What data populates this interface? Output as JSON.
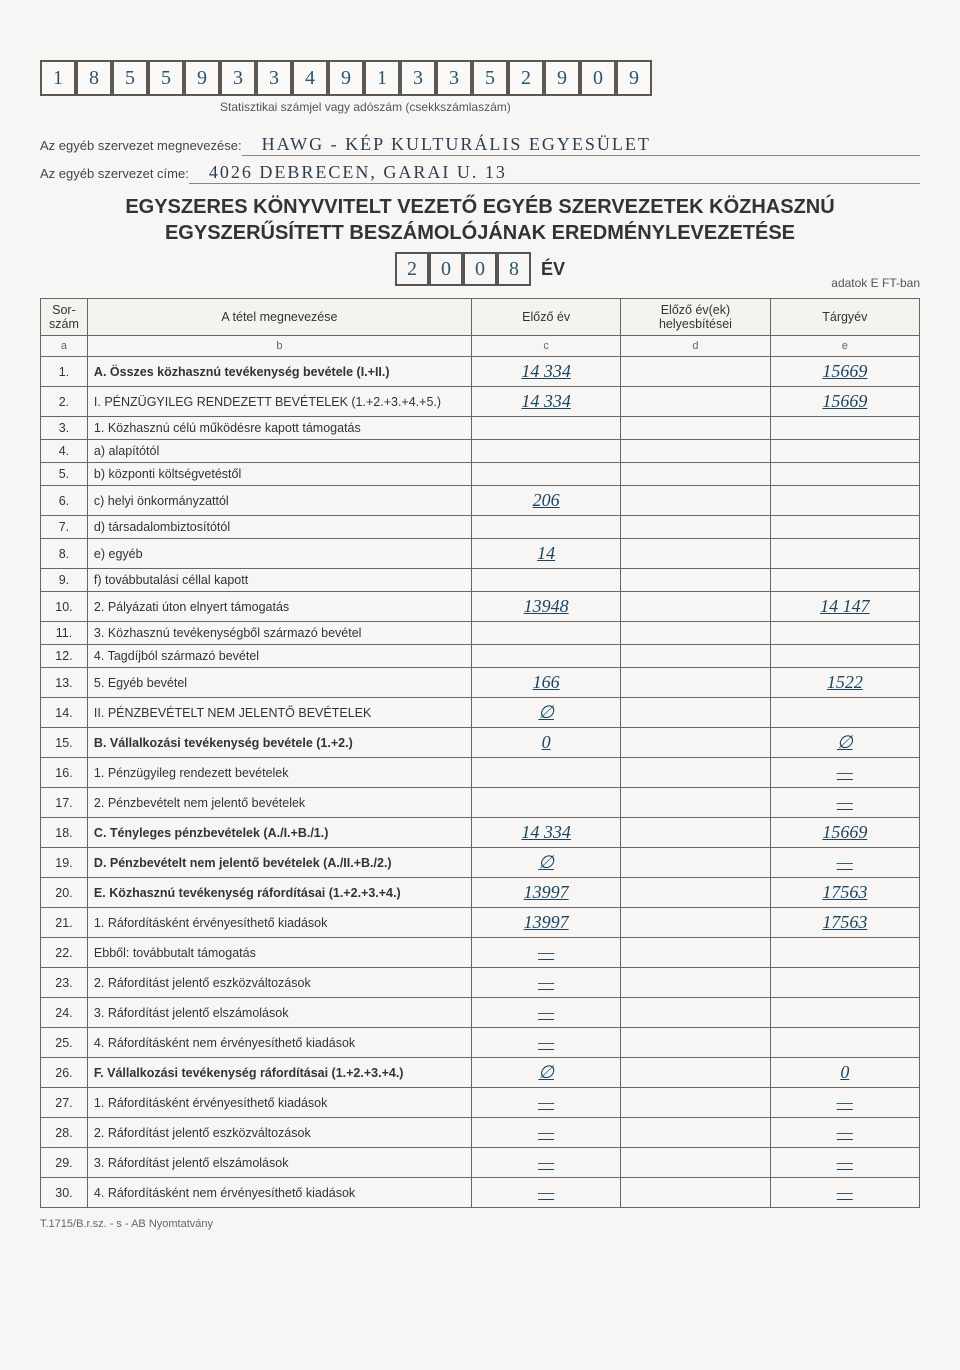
{
  "taxnum_cells": [
    "1",
    "8",
    "5",
    "5",
    "9",
    "3",
    "3",
    "4",
    "9",
    "1",
    "3",
    "3",
    "5",
    "2",
    "9",
    "0",
    "9"
  ],
  "taxnum_caption": "Statisztikai számjel vagy adószám (csekkszámlaszám)",
  "org_name_label": "Az egyéb szervezet megnevezése:",
  "org_name_value": "HAWG - KÉP   KULTURÁLIS  EGYESÜLET",
  "org_addr_label": "Az egyéb szervezet címe:",
  "org_addr_value": "4026  DEBRECEN,  GARAI  U. 13",
  "title_line1": "EGYSZERES KÖNYVVITELT VEZETŐ EGYÉB SZERVEZETEK KÖZHASZNÚ",
  "title_line2": "EGYSZERŰSÍTETT BESZÁMOLÓJÁNAK EREDMÉNYLEVEZETÉSE",
  "year_cells": [
    "2",
    "0",
    "0",
    "8"
  ],
  "year_label": "ÉV",
  "units_label": "adatok E FT-ban",
  "headers": {
    "sorszam": "Sor-szám",
    "megnevezes": "A tétel megnevezése",
    "elozo": "Előző év",
    "helyesbites": "Előző év(ek) helyesbítései",
    "targyev": "Tárgyév"
  },
  "subheads": [
    "a",
    "b",
    "c",
    "d",
    "e"
  ],
  "rows": [
    {
      "n": "1.",
      "name": "A. Összes közhasznú tevékenység bevétele (I.+II.)",
      "c": "14 334",
      "e": "15669",
      "bold": true
    },
    {
      "n": "2.",
      "name": "I.   PÉNZÜGYILEG RENDEZETT BEVÉTELEK (1.+2.+3.+4.+5.)",
      "c": "14 334",
      "e": "15669",
      "indent": 0
    },
    {
      "n": "3.",
      "name": "1. Közhasznú célú működésre kapott támogatás",
      "indent": 1
    },
    {
      "n": "4.",
      "name": "a) alapítótól",
      "indent": 2
    },
    {
      "n": "5.",
      "name": "b) központi költségvetéstől",
      "indent": 2
    },
    {
      "n": "6.",
      "name": "c) helyi önkormányzattól",
      "c": "206",
      "indent": 2
    },
    {
      "n": "7.",
      "name": "d) társadalombiztosítótól",
      "indent": 2
    },
    {
      "n": "8.",
      "name": "e) egyéb",
      "c": "14",
      "indent": 2
    },
    {
      "n": "9.",
      "name": "f) továbbutalási céllal kapott",
      "indent": 2
    },
    {
      "n": "10.",
      "name": "2. Pályázati úton elnyert támogatás",
      "c": "13948",
      "e": "14 147",
      "indent": 1
    },
    {
      "n": "11.",
      "name": "3. Közhasznú tevékenységből származó bevétel",
      "indent": 1
    },
    {
      "n": "12.",
      "name": "4. Tagdíjból származó bevétel",
      "indent": 1
    },
    {
      "n": "13.",
      "name": "5. Egyéb bevétel",
      "c": "166",
      "e": "1522",
      "indent": 1
    },
    {
      "n": "14.",
      "name": "II.   PÉNZBEVÉTELT NEM JELENTŐ BEVÉTELEK",
      "c": "∅",
      "indent": 0
    },
    {
      "n": "15.",
      "name": "B. Vállalkozási tevékenység bevétele (1.+2.)",
      "c": "0",
      "e": "∅",
      "bold": true
    },
    {
      "n": "16.",
      "name": "1. Pénzügyileg rendezett bevételek",
      "e": "—",
      "indent": 1
    },
    {
      "n": "17.",
      "name": "2. Pénzbevételt nem jelentő bevételek",
      "e": "—",
      "indent": 1
    },
    {
      "n": "18.",
      "name": "C. Tényleges pénzbevételek (A./I.+B./1.)",
      "c": "14 334",
      "e": "15669",
      "bold": true
    },
    {
      "n": "19.",
      "name": "D. Pénzbevételt nem jelentő bevételek (A./II.+B./2.)",
      "c": "∅",
      "e": "—",
      "bold": true
    },
    {
      "n": "20.",
      "name": "E. Közhasznú tevékenység ráfordításai (1.+2.+3.+4.)",
      "c": "13997",
      "e": "17563",
      "bold": true
    },
    {
      "n": "21.",
      "name": "1. Ráfordításként érvényesíthető kiadások",
      "c": "13997",
      "e": "17563",
      "indent": 1
    },
    {
      "n": "22.",
      "name": "Ebből: továbbutalt támogatás",
      "c": "—",
      "indent": 2
    },
    {
      "n": "23.",
      "name": "2. Ráfordítást jelentő eszközváltozások",
      "c": "—",
      "indent": 1
    },
    {
      "n": "24.",
      "name": "3. Ráfordítást jelentő elszámolások",
      "c": "—",
      "indent": 1
    },
    {
      "n": "25.",
      "name": "4. Ráfordításként nem érvényesíthető kiadások",
      "c": "—",
      "indent": 1
    },
    {
      "n": "26.",
      "name": "F. Vállalkozási tevékenység ráfordításai (1.+2.+3.+4.)",
      "c": "∅",
      "e": "0",
      "bold": true
    },
    {
      "n": "27.",
      "name": "1. Ráfordításként érvényesíthető kiadások",
      "c": "—",
      "e": "—",
      "indent": 1
    },
    {
      "n": "28.",
      "name": "2. Ráfordítást jelentő eszközváltozások",
      "c": "—",
      "e": "—",
      "indent": 1
    },
    {
      "n": "29.",
      "name": "3. Ráfordítást jelentő elszámolások",
      "c": "—",
      "e": "—",
      "indent": 1
    },
    {
      "n": "30.",
      "name": "4. Ráfordításként nem érvényesíthető kiadások",
      "c": "—",
      "e": "—",
      "indent": 1
    }
  ],
  "footer": "T.1715/B.r.sz. - s - AB Nyomtatvány"
}
